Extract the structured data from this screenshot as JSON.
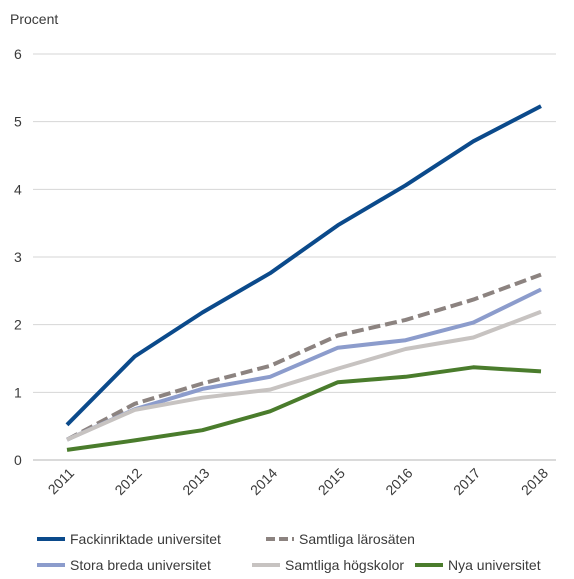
{
  "chart_data": {
    "type": "line",
    "ylabel": "Procent",
    "ylim": [
      0,
      6
    ],
    "yticks": [
      "0",
      "1",
      "2",
      "3",
      "4",
      "5",
      "6"
    ],
    "categories": [
      "2011",
      "2012",
      "2013",
      "2014",
      "2015",
      "2016",
      "2017",
      "2018"
    ],
    "grid": true,
    "legend_position": "bottom",
    "series": [
      {
        "name": "Fackinriktade universitet",
        "color": "#0b4a8b",
        "dash": false,
        "values": [
          0.52,
          1.53,
          2.18,
          2.76,
          3.47,
          4.06,
          4.71,
          5.23
        ]
      },
      {
        "name": "Samtliga lärosäten",
        "color": "#8c8380",
        "dash": true,
        "values": [
          0.3,
          0.83,
          1.13,
          1.39,
          1.84,
          2.07,
          2.37,
          2.74
        ]
      },
      {
        "name": "Stora breda universitet",
        "color": "#8c9ccc",
        "dash": false,
        "values": [
          0.3,
          0.75,
          1.05,
          1.23,
          1.66,
          1.77,
          2.03,
          2.52
        ]
      },
      {
        "name": "Samtliga högskolor",
        "color": "#c7c3c1",
        "dash": false,
        "values": [
          0.3,
          0.74,
          0.92,
          1.04,
          1.35,
          1.64,
          1.81,
          2.19
        ]
      },
      {
        "name": "Nya universitet",
        "color": "#4a7c2c",
        "dash": false,
        "values": [
          0.15,
          0.29,
          0.44,
          0.72,
          1.15,
          1.23,
          1.37,
          1.31
        ]
      }
    ]
  }
}
